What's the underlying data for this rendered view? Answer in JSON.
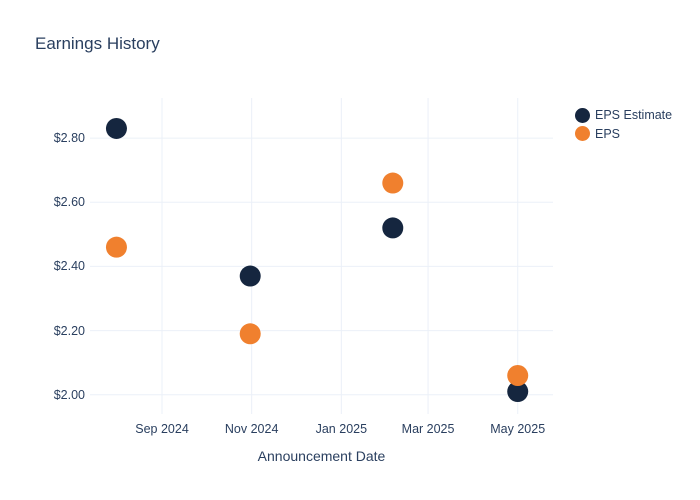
{
  "chart_data": {
    "type": "scatter",
    "title": "Earnings History",
    "xlabel": "Announcement Date",
    "ylabel": "",
    "grid": true,
    "legend_position": "outside-top-right",
    "x_ticks_dates": [
      "2024-09-01",
      "2024-11-01",
      "2025-01-01",
      "2025-03-01",
      "2025-05-01"
    ],
    "x_tick_labels": [
      "Sep 2024",
      "Nov 2024",
      "Jan 2025",
      "Mar 2025",
      "May 2025"
    ],
    "x_range_dates": [
      "2024-07-14",
      "2025-05-25"
    ],
    "y_ticks": [
      2.8,
      2.6,
      2.4,
      2.2,
      2.0
    ],
    "y_tick_labels": [
      "$2.80",
      "$2.60",
      "$2.40",
      "$2.20",
      "$2.00"
    ],
    "ylim": [
      1.94,
      2.925
    ],
    "series": [
      {
        "name": "EPS Estimate",
        "color": "#15263F",
        "marker_size": 21,
        "points": [
          {
            "date": "2024-08-01",
            "value": 2.83
          },
          {
            "date": "2024-10-31",
            "value": 2.37
          },
          {
            "date": "2025-02-05",
            "value": 2.52
          },
          {
            "date": "2025-05-01",
            "value": 2.01
          }
        ]
      },
      {
        "name": "EPS",
        "color": "#F0802E",
        "marker_size": 21,
        "points": [
          {
            "date": "2024-08-01",
            "value": 2.46
          },
          {
            "date": "2024-10-31",
            "value": 2.19
          },
          {
            "date": "2025-02-05",
            "value": 2.66
          },
          {
            "date": "2025-05-01",
            "value": 2.06
          }
        ]
      }
    ],
    "colors": {
      "background": "#ffffff",
      "grid": "#ebf0f8",
      "text": "#2a3f5f"
    }
  }
}
